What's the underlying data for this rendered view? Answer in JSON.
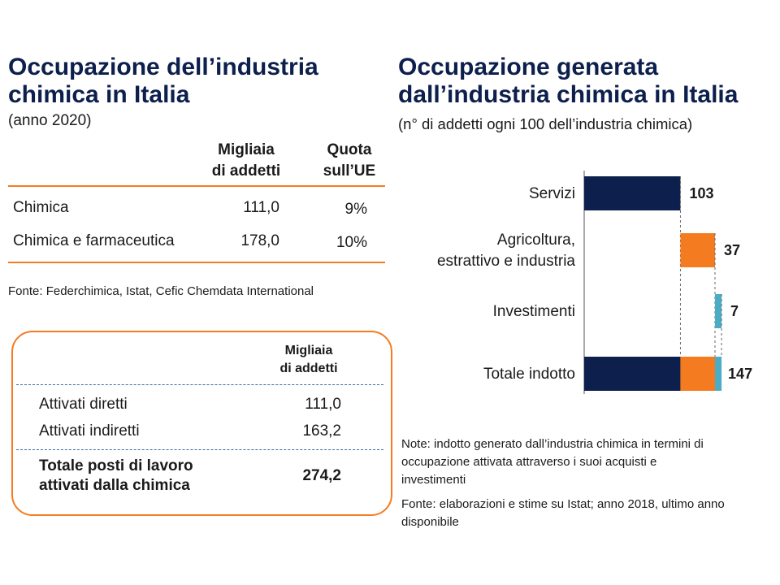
{
  "left": {
    "title_line1": "Occupazione dell’industria",
    "title_line2": "chimica in Italia",
    "subtitle": "(anno 2020)",
    "table1": {
      "col1_line1": "Migliaia",
      "col1_line2": "di addetti",
      "col2_line1": "Quota",
      "col2_line2": "sull’UE",
      "rows": [
        {
          "label": "Chimica",
          "value": "111,0",
          "share": "9%"
        },
        {
          "label": "Chimica e farmaceutica",
          "value": "178,0",
          "share": "10%"
        }
      ]
    },
    "source": "Fonte: Federchimica, Istat, Cefic Chemdata International",
    "table2": {
      "col_line1": "Migliaia",
      "col_line2": "di addetti",
      "rows": [
        {
          "label": "Attivati diretti",
          "value": "111,0"
        },
        {
          "label": "Attivati indiretti",
          "value": "163,2"
        }
      ],
      "total_line1": "Totale posti di lavoro",
      "total_line2": "attivati dalla chimica",
      "total_value": "274,2"
    }
  },
  "right": {
    "title_line1": "Occupazione generata",
    "title_line2": "dall’industria chimica in Italia",
    "subtitle": "(n° di addetti ogni 100 dell’industria chimica)",
    "note": "Note: indotto generato dall’industria chimica in termini di occupazione attivata attraverso i suoi acquisti e investimenti",
    "source": "Fonte: elaborazioni e stime su Istat; anno 2018, ultimo anno disponibile"
  },
  "chart_data": {
    "type": "bar",
    "orientation": "horizontal",
    "stacked": "waterfall",
    "categories": [
      [
        "Servizi"
      ],
      [
        "Agricoltura,",
        "estrattivo e industria"
      ],
      [
        "Investimenti"
      ],
      [
        "Totale indotto"
      ]
    ],
    "components": [
      {
        "name": "Servizi",
        "value": 103,
        "color": "#0d1f4c"
      },
      {
        "name": "Agricoltura, estrattivo e industria",
        "value": 37,
        "color": "#f47b20"
      },
      {
        "name": "Investimenti",
        "value": 7,
        "color": "#4bacc6"
      }
    ],
    "total": 147,
    "value_labels": [
      "103",
      "37",
      "7",
      "147"
    ],
    "xlim": [
      0,
      160
    ],
    "grid": false,
    "legend": "none"
  }
}
